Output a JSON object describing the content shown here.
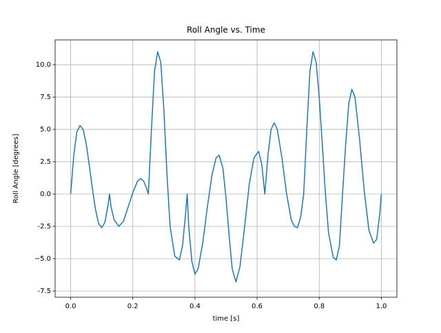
{
  "chart_data": {
    "type": "line",
    "title": "Roll Angle vs. Time",
    "xlabel": "time [s]",
    "ylabel": "Roll Angle [degrees]",
    "grid": true,
    "xlim": [
      -0.05,
      1.05
    ],
    "ylim": [
      -7.98,
      11.92
    ],
    "xticks": [
      {
        "value": 0,
        "label": "0.0"
      },
      0.2,
      0.4,
      0.6,
      0.8,
      {
        "value": 1,
        "label": "1.0"
      }
    ],
    "yticks": [
      -7.5,
      {
        "value": -5,
        "label": "−5.0"
      },
      -2.5,
      {
        "value": 0,
        "label": "0.0"
      },
      2.5,
      {
        "value": 5,
        "label": "5.0"
      },
      7.5,
      {
        "value": 10,
        "label": "10.0"
      }
    ],
    "x": [
      0,
      0.01,
      0.02,
      0.03,
      0.04,
      0.05,
      0.06,
      0.07,
      0.08,
      0.09,
      0.1,
      0.11,
      0.12,
      0.125,
      0.13,
      0.14,
      0.155,
      0.17,
      0.185,
      0.2,
      0.215,
      0.225,
      0.235,
      0.245,
      0.25,
      0.26,
      0.27,
      0.28,
      0.29,
      0.3,
      0.31,
      0.32,
      0.335,
      0.35,
      0.36,
      0.37,
      0.375,
      0.38,
      0.39,
      0.4,
      0.41,
      0.425,
      0.44,
      0.455,
      0.468,
      0.478,
      0.49,
      0.5,
      0.51,
      0.52,
      0.532,
      0.545,
      0.56,
      0.575,
      0.59,
      0.605,
      0.615,
      0.625,
      0.635,
      0.645,
      0.655,
      0.665,
      0.68,
      0.695,
      0.71,
      0.72,
      0.73,
      0.74,
      0.75,
      0.76,
      0.77,
      0.78,
      0.79,
      0.8,
      0.81,
      0.82,
      0.83,
      0.845,
      0.855,
      0.865,
      0.875,
      0.885,
      0.895,
      0.905,
      0.915,
      0.93,
      0.945,
      0.96,
      0.975,
      0.985,
      0.995,
      1.0
    ],
    "series": [
      {
        "color": "#1f77b4",
        "values": [
          0,
          3.0,
          4.8,
          5.3,
          5.0,
          3.9,
          2.2,
          0.4,
          -1.2,
          -2.3,
          -2.6,
          -2.2,
          -0.9,
          0,
          -1.0,
          -2.0,
          -2.5,
          -2.1,
          -1.0,
          0.1,
          1.0,
          1.2,
          1.0,
          0.4,
          0,
          5.0,
          9.5,
          11.0,
          10.2,
          6.5,
          1.5,
          -2.5,
          -4.8,
          -5.1,
          -4.0,
          -1.5,
          0,
          -2.5,
          -5.2,
          -6.2,
          -5.8,
          -3.8,
          -1.0,
          1.5,
          2.8,
          3.0,
          2.0,
          -0.3,
          -3.2,
          -5.8,
          -6.8,
          -5.6,
          -2.5,
          0.8,
          2.8,
          3.3,
          2.3,
          0,
          3.0,
          5.0,
          5.5,
          5.0,
          2.8,
          0.0,
          -2.0,
          -2.5,
          -2.6,
          -1.8,
          0,
          5.0,
          9.5,
          11.0,
          10.2,
          7.5,
          3.8,
          0.0,
          -3.0,
          -4.9,
          -5.1,
          -4.0,
          0,
          3.8,
          7.0,
          8.1,
          7.5,
          4.2,
          0.2,
          -2.8,
          -3.8,
          -3.5,
          -1.5,
          0
        ]
      }
    ]
  }
}
